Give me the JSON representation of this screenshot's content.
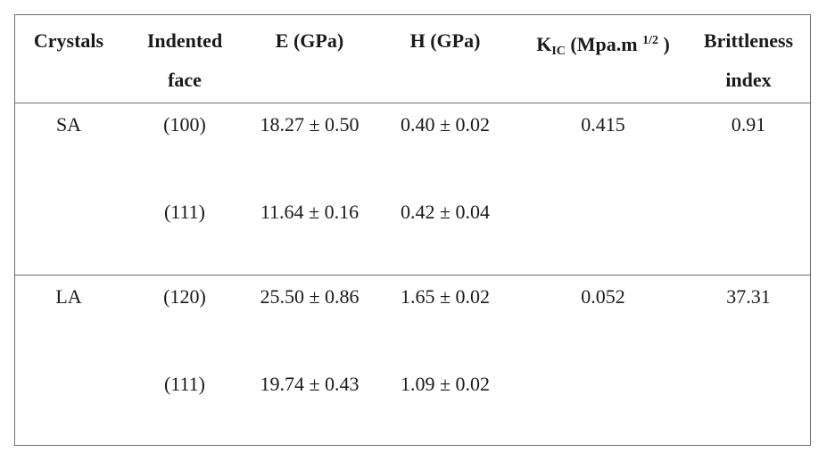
{
  "table": {
    "headers": {
      "crystals": "Crystals",
      "indented_line1": "Indented",
      "indented_line2": "face",
      "e": "E (GPa)",
      "h": "H (GPa)",
      "kic_k": "K",
      "kic_sub": "IC",
      "kic_text": "(Mpa.m",
      "kic_sup": "1/2",
      "kic_close": ")",
      "brittleness_line1": "Brittleness",
      "brittleness_line2": "index"
    },
    "rows": [
      {
        "crystal": "SA",
        "face": "(100)",
        "e": "18.27 ± 0.50",
        "h": "0.40 ± 0.02",
        "kic": "0.415",
        "brittleness": "0.91"
      },
      {
        "crystal": "",
        "face": "(111)",
        "e": "11.64 ± 0.16",
        "h": "0.42 ± 0.04",
        "kic": "",
        "brittleness": ""
      },
      {
        "crystal": "LA",
        "face": "(120)",
        "e": "25.50 ± 0.86",
        "h": "1.65 ± 0.02",
        "kic": "0.052",
        "brittleness": "37.31"
      },
      {
        "crystal": "",
        "face": "(111)",
        "e": "19.74 ± 0.43",
        "h": "1.09 ± 0.02",
        "kic": "",
        "brittleness": ""
      }
    ]
  }
}
